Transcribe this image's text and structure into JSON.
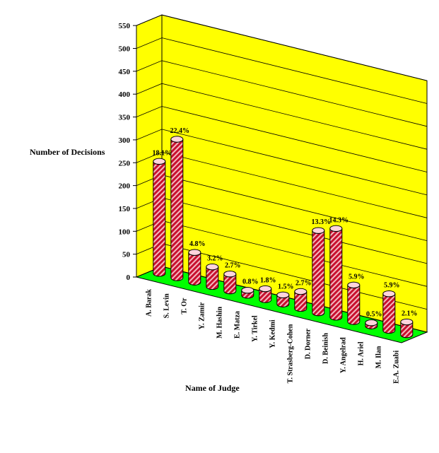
{
  "chart_data": {
    "type": "bar",
    "title": "",
    "xlabel": "Name of Judge",
    "ylabel": "Number of Decisions",
    "ylim": [
      0,
      550
    ],
    "yticks": [
      0,
      50,
      100,
      150,
      200,
      250,
      300,
      350,
      400,
      450,
      500,
      550
    ],
    "grid": true,
    "legend": "none",
    "categories": [
      "A. Barak",
      "S. Levin",
      "T. Or",
      "Y. Zamir",
      "M. Hashin",
      "E. Matza",
      "Y. Tirkel",
      "Y. Kedmi",
      "T. Strasberg-Cohen",
      "D. Dorner",
      "D. Beinish",
      "Y. Angelrad",
      "H. Ariel",
      "M. Ilan",
      "E.A. Zuabi"
    ],
    "values": [
      245,
      303,
      65,
      43,
      37,
      11,
      24,
      20,
      37,
      180,
      194,
      80,
      7,
      80,
      28
    ],
    "labels": [
      "18.1%",
      "22.4%",
      "4.8%",
      "3.2%",
      "2.7%",
      "0.8%",
      "1.8%",
      "1.5%",
      "2.7%",
      "13.3%",
      "14.3%",
      "5.9%",
      "0.5%",
      "5.9%",
      "2.1%"
    ],
    "colors": {
      "wall": "#ffff00",
      "floor": "#00ff00",
      "bar_red": "#c8102e",
      "bar_stripe": "#f4b8c0",
      "bar_top": "#ffd4dc"
    }
  }
}
